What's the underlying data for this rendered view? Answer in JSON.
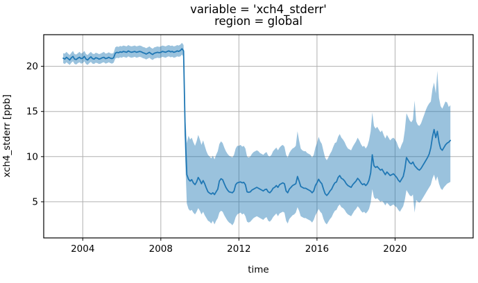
{
  "figure": {
    "title_line1": "variable = 'xch4_stderr'",
    "title_line2": "region = global",
    "xlabel": "time",
    "ylabel": "xch4_stderr [ppb]"
  },
  "chart_data": {
    "type": "line",
    "title": "variable = 'xch4_stderr'\nregion = global",
    "xlabel": "time",
    "ylabel": "xch4_stderr [ppb]",
    "grid": true,
    "legend_position": "none",
    "line_color": "#1f77b4",
    "band_color": "#1f77b4",
    "band_alpha": 0.45,
    "grid_color": "#b0b0b0",
    "axis_color": "#000000",
    "xlim": [
      2002,
      2024
    ],
    "ylim": [
      1.0,
      23.5
    ],
    "x_ticks": [
      2004,
      2008,
      2012,
      2016,
      2020
    ],
    "y_ticks": [
      5,
      10,
      15,
      20
    ],
    "x_start": 2003.0,
    "x_step": 0.0833333,
    "series": [
      {
        "name": "mean",
        "values": [
          20.9,
          20.8,
          21.0,
          20.85,
          20.7,
          20.95,
          21.1,
          20.8,
          20.75,
          20.9,
          21.0,
          20.85,
          20.9,
          21.1,
          20.8,
          20.7,
          20.9,
          21.05,
          20.85,
          20.8,
          20.95,
          20.9,
          20.8,
          20.85,
          20.95,
          21.0,
          20.85,
          20.9,
          21.0,
          20.9,
          20.85,
          20.95,
          21.45,
          21.55,
          21.5,
          21.6,
          21.55,
          21.65,
          21.6,
          21.55,
          21.7,
          21.6,
          21.55,
          21.6,
          21.65,
          21.55,
          21.6,
          21.65,
          21.6,
          21.5,
          21.45,
          21.35,
          21.45,
          21.55,
          21.4,
          21.3,
          21.45,
          21.5,
          21.55,
          21.5,
          21.55,
          21.65,
          21.6,
          21.55,
          21.65,
          21.7,
          21.6,
          21.65,
          21.55,
          21.6,
          21.7,
          21.65,
          21.75,
          21.95,
          21.7,
          12.5,
          8.0,
          7.5,
          7.3,
          7.45,
          7.1,
          6.9,
          7.2,
          7.7,
          7.4,
          7.0,
          7.35,
          7.0,
          6.5,
          6.1,
          5.95,
          5.85,
          6.0,
          5.8,
          6.1,
          6.4,
          7.3,
          7.55,
          7.45,
          7.0,
          6.6,
          6.3,
          6.1,
          6.05,
          6.0,
          6.2,
          6.9,
          7.1,
          7.15,
          7.2,
          7.1,
          7.15,
          6.9,
          6.1,
          6.05,
          6.1,
          6.3,
          6.4,
          6.5,
          6.6,
          6.5,
          6.4,
          6.3,
          6.2,
          6.35,
          6.4,
          6.1,
          6.0,
          6.2,
          6.5,
          6.6,
          6.8,
          6.6,
          6.9,
          7.0,
          7.1,
          7.0,
          6.2,
          6.0,
          6.4,
          6.6,
          6.8,
          6.9,
          7.0,
          7.8,
          7.3,
          6.7,
          6.6,
          6.5,
          6.5,
          6.4,
          6.3,
          6.2,
          6.0,
          6.2,
          6.8,
          7.1,
          7.5,
          7.2,
          7.0,
          6.4,
          5.9,
          5.7,
          5.9,
          6.2,
          6.4,
          6.8,
          7.1,
          7.2,
          7.7,
          7.9,
          7.6,
          7.5,
          7.3,
          7.0,
          6.8,
          6.7,
          6.6,
          6.9,
          7.1,
          7.3,
          7.6,
          7.4,
          7.1,
          6.9,
          7.0,
          6.8,
          7.0,
          7.4,
          8.2,
          10.2,
          9.0,
          8.8,
          8.9,
          8.7,
          8.5,
          8.6,
          8.3,
          8.0,
          8.3,
          8.1,
          7.9,
          8.0,
          8.1,
          7.9,
          7.7,
          7.4,
          7.2,
          7.5,
          7.8,
          8.6,
          9.9,
          9.6,
          9.3,
          9.2,
          9.4,
          9.0,
          8.8,
          8.6,
          8.5,
          8.7,
          9.0,
          9.3,
          9.6,
          9.9,
          10.3,
          11.0,
          12.2,
          13.0,
          12.1,
          12.8,
          11.6,
          10.9,
          10.7,
          11.0,
          11.3,
          11.5,
          11.6,
          11.8
        ]
      },
      {
        "name": "upper",
        "values": [
          21.45,
          21.4,
          21.6,
          21.4,
          21.25,
          21.5,
          21.7,
          21.35,
          21.3,
          21.45,
          21.6,
          21.4,
          21.5,
          21.7,
          21.35,
          21.25,
          21.45,
          21.6,
          21.4,
          21.35,
          21.5,
          21.45,
          21.35,
          21.4,
          21.5,
          21.6,
          21.4,
          21.45,
          21.55,
          21.45,
          21.4,
          21.5,
          22.1,
          22.2,
          22.15,
          22.25,
          22.2,
          22.3,
          22.25,
          22.2,
          22.35,
          22.25,
          22.2,
          22.25,
          22.3,
          22.2,
          22.25,
          22.3,
          22.25,
          22.15,
          22.1,
          22.0,
          22.1,
          22.2,
          22.05,
          21.95,
          22.1,
          22.15,
          22.2,
          22.15,
          22.2,
          22.3,
          22.25,
          22.2,
          22.3,
          22.35,
          22.25,
          22.3,
          22.2,
          22.25,
          22.35,
          22.3,
          22.4,
          22.6,
          22.35,
          14.5,
          11.5,
          12.3,
          11.9,
          12.1,
          11.6,
          11.2,
          11.7,
          12.4,
          11.9,
          11.3,
          11.8,
          11.2,
          10.6,
          10.2,
          10.0,
          9.8,
          10.1,
          9.7,
          10.2,
          10.6,
          11.4,
          11.7,
          11.5,
          11.0,
          10.6,
          10.3,
          10.1,
          10.0,
          9.9,
          10.2,
          10.9,
          11.2,
          11.2,
          11.3,
          11.1,
          11.2,
          10.9,
          10.0,
          9.9,
          10.0,
          10.3,
          10.5,
          10.6,
          10.7,
          10.6,
          10.4,
          10.3,
          10.2,
          10.4,
          10.5,
          10.1,
          10.0,
          10.2,
          10.6,
          10.8,
          11.0,
          10.7,
          11.0,
          11.2,
          11.3,
          11.1,
          10.2,
          9.9,
          10.4,
          10.7,
          10.9,
          11.0,
          11.2,
          12.8,
          11.8,
          10.9,
          10.7,
          10.6,
          10.6,
          10.4,
          10.3,
          10.2,
          9.9,
          10.2,
          11.0,
          11.5,
          12.2,
          11.7,
          11.4,
          10.6,
          9.9,
          9.6,
          9.9,
          10.3,
          10.6,
          11.1,
          11.5,
          11.6,
          12.2,
          12.5,
          12.1,
          11.9,
          11.6,
          11.2,
          10.9,
          10.8,
          10.7,
          11.1,
          11.4,
          11.7,
          12.1,
          11.8,
          11.4,
          11.1,
          11.2,
          10.9,
          11.2,
          11.8,
          12.8,
          14.9,
          13.4,
          13.1,
          13.3,
          13.0,
          12.7,
          12.9,
          12.4,
          12.0,
          12.4,
          12.1,
          11.8,
          12.0,
          12.1,
          11.9,
          11.6,
          11.1,
          10.8,
          11.3,
          11.7,
          12.9,
          14.8,
          14.4,
          14.0,
          13.8,
          14.1,
          16.2,
          13.9,
          13.5,
          13.4,
          13.7,
          14.2,
          14.7,
          15.2,
          15.6,
          15.9,
          16.1,
          17.5,
          18.2,
          17.0,
          19.5,
          16.5,
          15.6,
          15.3,
          15.7,
          16.1,
          16.0,
          15.5,
          15.7
        ]
      },
      {
        "name": "lower",
        "values": [
          20.35,
          20.25,
          20.45,
          20.3,
          20.15,
          20.4,
          20.55,
          20.25,
          20.2,
          20.35,
          20.45,
          20.3,
          20.35,
          20.55,
          20.25,
          20.15,
          20.35,
          20.5,
          20.3,
          20.25,
          20.4,
          20.35,
          20.25,
          20.3,
          20.4,
          20.45,
          20.3,
          20.35,
          20.45,
          20.35,
          20.3,
          20.4,
          20.85,
          20.95,
          20.9,
          21.0,
          20.95,
          21.05,
          21.0,
          20.95,
          21.1,
          21.0,
          20.95,
          21.0,
          21.05,
          20.95,
          21.0,
          21.05,
          21.0,
          20.9,
          20.85,
          20.75,
          20.85,
          20.95,
          20.8,
          20.7,
          20.85,
          20.9,
          20.95,
          20.9,
          20.95,
          21.05,
          21.0,
          20.95,
          21.05,
          21.1,
          21.0,
          21.05,
          20.95,
          21.0,
          21.1,
          21.05,
          21.1,
          21.3,
          21.05,
          9.5,
          4.8,
          4.2,
          4.0,
          4.1,
          3.8,
          3.6,
          3.9,
          4.3,
          4.0,
          3.6,
          3.9,
          3.5,
          3.2,
          2.9,
          2.8,
          2.6,
          2.9,
          2.5,
          2.9,
          3.2,
          3.8,
          4.0,
          3.9,
          3.5,
          3.2,
          2.9,
          2.7,
          2.6,
          2.4,
          2.7,
          3.3,
          3.6,
          3.7,
          3.8,
          3.6,
          3.7,
          3.4,
          2.8,
          2.7,
          2.8,
          3.0,
          3.2,
          3.3,
          3.4,
          3.3,
          3.2,
          3.1,
          3.0,
          3.2,
          3.3,
          2.9,
          2.8,
          3.0,
          3.3,
          3.5,
          3.7,
          3.4,
          3.7,
          3.8,
          3.9,
          3.8,
          2.9,
          2.6,
          3.1,
          3.3,
          3.5,
          3.6,
          3.8,
          4.4,
          4.0,
          3.4,
          3.3,
          3.2,
          3.2,
          3.1,
          3.0,
          2.9,
          2.7,
          3.0,
          3.5,
          3.8,
          4.2,
          3.9,
          3.7,
          3.1,
          2.7,
          2.5,
          2.8,
          3.1,
          3.3,
          3.7,
          4.0,
          4.1,
          4.5,
          4.7,
          4.4,
          4.3,
          4.1,
          3.8,
          3.6,
          3.5,
          3.4,
          3.7,
          4.0,
          4.2,
          4.5,
          4.3,
          4.0,
          3.8,
          3.9,
          3.7,
          3.9,
          4.2,
          4.9,
          6.4,
          5.5,
          5.3,
          5.4,
          5.2,
          5.0,
          5.1,
          4.9,
          4.6,
          4.9,
          4.7,
          4.5,
          4.6,
          4.7,
          4.5,
          4.4,
          4.1,
          3.9,
          4.2,
          4.5,
          5.2,
          6.3,
          6.0,
          5.7,
          5.6,
          5.8,
          3.8,
          5.2,
          5.0,
          4.9,
          5.1,
          5.4,
          5.7,
          6.0,
          6.3,
          6.6,
          6.9,
          7.6,
          8.0,
          7.3,
          7.8,
          7.0,
          6.5,
          6.3,
          6.6,
          6.8,
          7.0,
          7.1,
          7.2
        ]
      }
    ]
  }
}
